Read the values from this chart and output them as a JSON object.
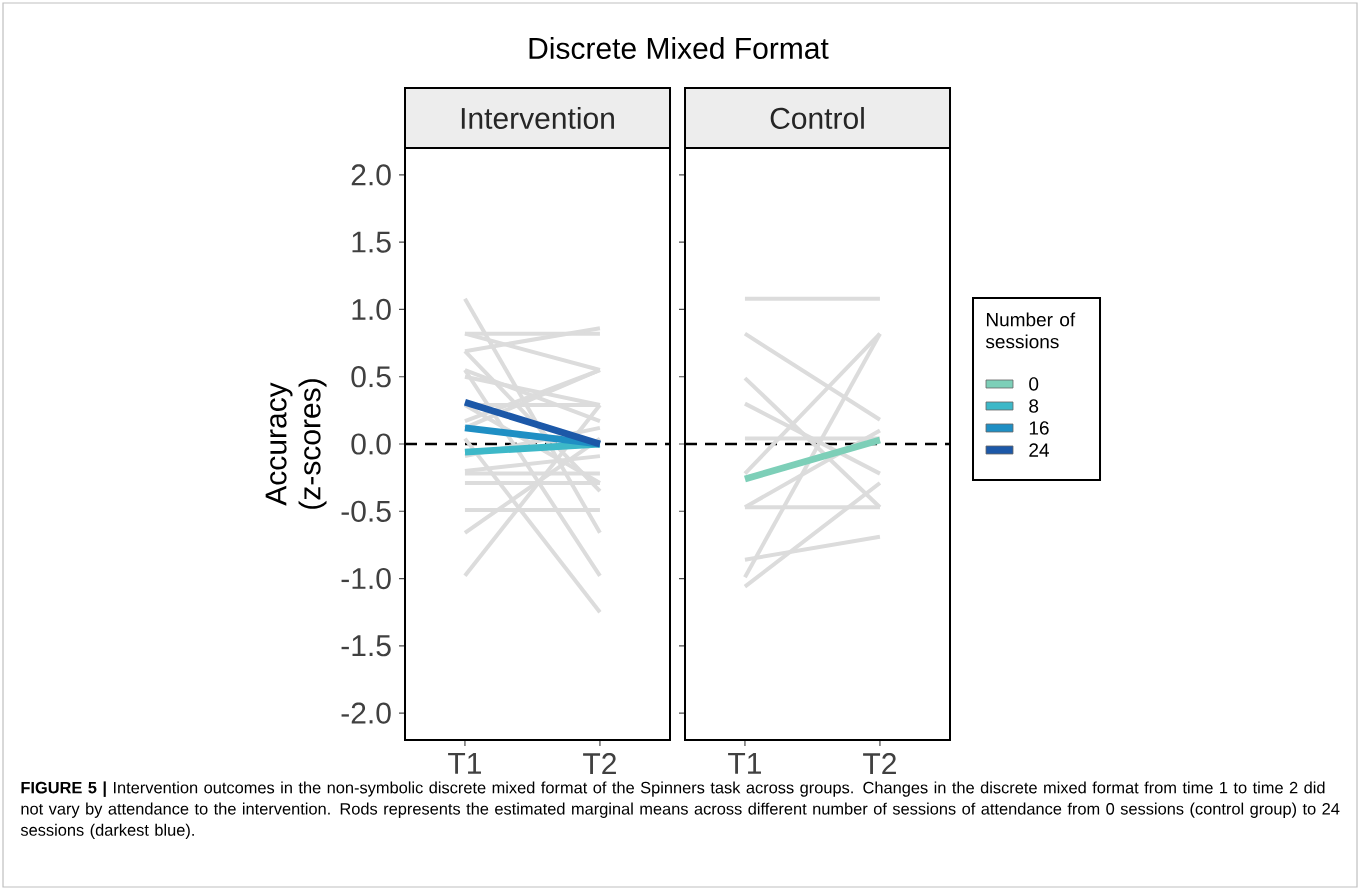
{
  "chart_data": [
    {
      "type": "line",
      "title": "Discrete Mixed Format",
      "subtitle": "Intervention",
      "ylabel": "Accuracy (z-scores)",
      "categories": [
        "T1",
        "T2"
      ],
      "legend": "right",
      "ylim": [
        -2.2,
        2.2
      ],
      "yticks": [
        {
          "value": -2,
          "label": "-2.0"
        },
        {
          "value": -1.5,
          "label": "-1.5"
        },
        {
          "value": -1,
          "label": "-1.0"
        },
        {
          "value": -0.5,
          "label": "-0.5"
        },
        {
          "value": 0,
          "label": "0.0"
        },
        {
          "value": 0.5,
          "label": "0.5"
        },
        {
          "value": 1,
          "label": "1.0"
        },
        {
          "value": 1.5,
          "label": "1.5"
        },
        {
          "value": 2,
          "label": "2.0"
        }
      ],
      "ref_lines": [
        {
          "axis": "y",
          "value": 0,
          "color": "#000000",
          "line_style": "dashed"
        }
      ],
      "annotations": [
        "**FIGURE 5 |** Intervention outcomes in the non-symbolic discrete mixed format of the Spinners task across groups. Changes in the discrete mixed format from time 1 to time 2 did not vary by attendance to the intervention. Rods represents the estimated marginal means across different number of sessions of attendance from 0 sessions (control group) to 24 sessions (darkest blue)."
      ],
      "series": [
        {
          "color": "#dcdcdc",
          "values": [
            1.08,
            -0.66
          ]
        },
        {
          "color": "#dcdcdc",
          "values": [
            0.82,
            0.82
          ]
        },
        {
          "color": "#dcdcdc",
          "values": [
            0.69,
            0.86
          ]
        },
        {
          "color": "#dcdcdc",
          "values": [
            0.82,
            0.55
          ]
        },
        {
          "color": "#dcdcdc",
          "values": [
            0.55,
            -0.98
          ]
        },
        {
          "color": "#dcdcdc",
          "values": [
            0.5,
            0.29
          ]
        },
        {
          "color": "#dcdcdc",
          "values": [
            0.29,
            0.29
          ]
        },
        {
          "color": "#dcdcdc",
          "values": [
            0.17,
            0.55
          ]
        },
        {
          "color": "#dcdcdc",
          "values": [
            -0.22,
            -0.22
          ]
        },
        {
          "color": "#dcdcdc",
          "values": [
            -0.29,
            -0.29
          ]
        },
        {
          "color": "#dcdcdc",
          "values": [
            -0.49,
            -0.49
          ]
        },
        {
          "color": "#dcdcdc",
          "values": [
            -0.66,
            0.04
          ]
        },
        {
          "color": "#dcdcdc",
          "values": [
            -0.98,
            0.29
          ]
        },
        {
          "color": "#dcdcdc",
          "values": [
            0.04,
            -1.25
          ]
        },
        {
          "color": "#dcdcdc",
          "values": [
            -0.09,
            0.12
          ]
        },
        {
          "color": "#dcdcdc",
          "values": [
            0.69,
            -0.35
          ]
        },
        {
          "color": "#dcdcdc",
          "values": [
            0.12,
            0.55
          ]
        },
        {
          "color": "#dcdcdc",
          "values": [
            -0.2,
            -0.09
          ]
        },
        {
          "color": "#dcdcdc",
          "values": [
            0.55,
            0.17
          ]
        },
        {
          "color": "#dcdcdc",
          "values": [
            0.29,
            -0.29
          ]
        },
        {
          "name": "8",
          "color": "#3db8c8",
          "values": [
            -0.06,
            0.0
          ]
        },
        {
          "name": "16",
          "color": "#1f8fc4",
          "values": [
            0.12,
            0.0
          ]
        },
        {
          "name": "24",
          "color": "#1c58a8",
          "values": [
            0.31,
            0.0
          ]
        }
      ]
    },
    {
      "type": "line",
      "subtitle": "Control",
      "categories": [
        "T1",
        "T2"
      ],
      "legend": "right",
      "legend_title": "Number of sessions",
      "tick_labels": "x",
      "ylim": [
        -2.2,
        2.2
      ],
      "yticks": [
        -2,
        -1.5,
        -1,
        -0.5,
        0,
        0.5,
        1,
        1.5,
        2
      ],
      "ref_lines": [
        {
          "axis": "y",
          "value": 0,
          "color": "#000000",
          "line_style": "dashed"
        }
      ],
      "series": [
        {
          "color": "#dcdcdc",
          "values": [
            1.08,
            1.08
          ]
        },
        {
          "color": "#dcdcdc",
          "values": [
            0.82,
            0.18
          ]
        },
        {
          "color": "#dcdcdc",
          "values": [
            0.49,
            -0.47
          ]
        },
        {
          "color": "#dcdcdc",
          "values": [
            0.3,
            -0.22
          ]
        },
        {
          "color": "#dcdcdc",
          "values": [
            0.04,
            0.04
          ]
        },
        {
          "color": "#dcdcdc",
          "values": [
            -0.22,
            0.82
          ]
        },
        {
          "color": "#dcdcdc",
          "values": [
            -0.47,
            -0.47
          ]
        },
        {
          "color": "#dcdcdc",
          "values": [
            -0.47,
            0.1
          ]
        },
        {
          "color": "#dcdcdc",
          "values": [
            -0.86,
            -0.69
          ]
        },
        {
          "color": "#dcdcdc",
          "values": [
            -0.99,
            0.82
          ]
        },
        {
          "color": "#dcdcdc",
          "values": [
            -1.06,
            -0.29
          ]
        },
        {
          "name": "0",
          "color": "#7dcfb8",
          "values": [
            -0.26,
            0.03
          ]
        }
      ]
    }
  ]
}
